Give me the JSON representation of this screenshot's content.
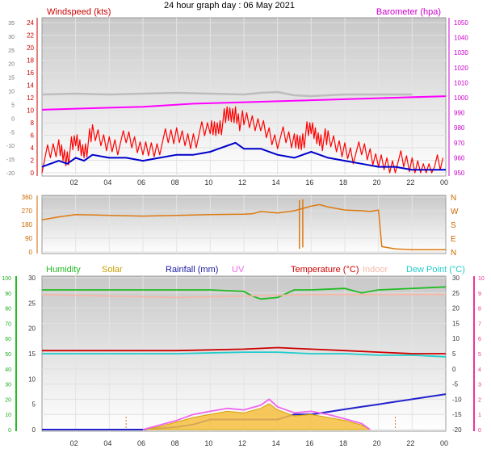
{
  "title": "24 hour graph day : 06 May 2021",
  "x_ticks": [
    "02",
    "04",
    "06",
    "08",
    "10",
    "12",
    "14",
    "16",
    "18",
    "20",
    "22",
    "00"
  ],
  "colors": {
    "windspeed": "#ff0000",
    "gust_avg": "#0000cc",
    "wind_bg": "#bdbdbd",
    "barometer": "#ff00ff",
    "direction": "#dd7a10",
    "humidity": "#22bb22",
    "solar": "#d4a400",
    "rainfall": "#2222cc",
    "uv": "#ee66ee",
    "temperature": "#cc0000",
    "indoor": "#f4b8a8",
    "dewpoint": "#22cccc",
    "left_axis_green": "#22bb22",
    "right_axis_pink": "#ee3399"
  },
  "chart_data": [
    {
      "type": "line",
      "id": "wind",
      "labels": {
        "left": "Windspeed (kts)",
        "right": "Barometer (hpa)"
      },
      "left_outer_ticks": [
        "35",
        "30",
        "25",
        "20",
        "15",
        "10",
        "5",
        "0",
        "-5",
        "-10",
        "-15",
        "-20"
      ],
      "left_inner_ticks": [
        "24",
        "22",
        "20",
        "18",
        "16",
        "14",
        "12",
        "10",
        "8",
        "6",
        "4",
        "2",
        "0"
      ],
      "right_ticks": [
        "1050",
        "1040",
        "1030",
        "1020",
        "1010",
        "1000",
        "990",
        "980",
        "970",
        "960",
        "950"
      ],
      "ylim_wind": [
        0,
        25
      ],
      "ylim_baro": [
        950,
        1050
      ],
      "series": [
        {
          "name": "Windspeed (kts)",
          "color": "#ff0000",
          "axis": "wind",
          "x": [
            0,
            1,
            1.5,
            2,
            2.5,
            3,
            4,
            5,
            6,
            7,
            8,
            9,
            10,
            10.5,
            11,
            11.5,
            12,
            13,
            14,
            15,
            15.5,
            16,
            16.5,
            17,
            18,
            19,
            20,
            21,
            22,
            23,
            24
          ],
          "y": [
            2,
            4,
            3,
            5,
            4,
            6,
            5,
            5,
            4,
            5,
            6,
            6,
            7,
            8,
            9,
            10,
            8,
            8,
            6,
            5,
            6,
            7,
            6,
            5,
            4,
            3,
            2,
            2,
            1,
            1,
            1
          ]
        },
        {
          "name": "Barometer (hpa)",
          "color": "#ff00ff",
          "axis": "baro",
          "x": [
            0,
            3,
            6,
            9,
            12,
            15,
            18,
            21,
            24
          ],
          "y": [
            992,
            993,
            994,
            996,
            997,
            998,
            999,
            1000,
            1001
          ]
        }
      ]
    },
    {
      "type": "line",
      "id": "direction",
      "left_ticks": [
        "360",
        "270",
        "180",
        "90",
        "0"
      ],
      "right_ticks": [
        "N",
        "W",
        "S",
        "E",
        "N"
      ],
      "ylim": [
        0,
        360
      ],
      "series": [
        {
          "name": "Wind direction",
          "color": "#dd7a10",
          "x": [
            0,
            1,
            2,
            4,
            6,
            8,
            10,
            12,
            12.5,
            13,
            14,
            15,
            16,
            16.5,
            17,
            18,
            19,
            19.5,
            20,
            20.2,
            21,
            22,
            23,
            24
          ],
          "y": [
            210,
            230,
            245,
            240,
            235,
            240,
            245,
            248,
            250,
            265,
            255,
            270,
            300,
            310,
            295,
            275,
            270,
            265,
            275,
            35,
            20,
            15,
            15,
            15
          ]
        }
      ]
    },
    {
      "type": "line",
      "id": "multi",
      "labels": [
        "Humidity",
        "Solar",
        "Rainfall (mm)",
        "UV",
        "Temperature (°C)",
        "Indoor",
        "Dew Point (°C)"
      ],
      "left_outer_ticks": [
        "100",
        "90",
        "80",
        "70",
        "60",
        "50",
        "40",
        "30",
        "20",
        "10",
        "0"
      ],
      "left_inner_ticks": [
        "30",
        "25",
        "20",
        "15",
        "10",
        "5",
        "0"
      ],
      "right_inner_ticks": [
        "30",
        "25",
        "20",
        "15",
        "10",
        "5",
        "0",
        "-5",
        "-10",
        "-15",
        "-20"
      ],
      "right_outer_ticks": [
        "10",
        "9",
        "8",
        "7",
        "6",
        "5",
        "4",
        "3",
        "2",
        "1",
        "0"
      ],
      "ylim_pct": [
        0,
        100
      ],
      "ylim_rain": [
        0,
        30
      ],
      "ylim_temp": [
        -20,
        30
      ],
      "series": [
        {
          "name": "Humidity",
          "color": "#22bb22",
          "axis": "pct",
          "x": [
            0,
            2,
            4,
            6,
            8,
            10,
            12,
            12.5,
            13,
            14,
            15,
            16,
            18,
            19,
            20,
            22,
            24
          ],
          "y": [
            92,
            92,
            92,
            92,
            92,
            92,
            91,
            88,
            86,
            87,
            92,
            92,
            93,
            90,
            92,
            93,
            94
          ]
        },
        {
          "name": "Indoor",
          "color": "#f4b8a8",
          "axis": "pct",
          "x": [
            0,
            4,
            8,
            12,
            16,
            20,
            24
          ],
          "y": [
            89,
            88,
            87,
            88,
            89,
            89,
            89
          ]
        },
        {
          "name": "Temperature (°C)",
          "color": "#cc0000",
          "axis": "temp",
          "x": [
            0,
            4,
            8,
            12,
            14,
            16,
            18,
            20,
            22,
            24
          ],
          "y": [
            6,
            6,
            6,
            6.5,
            7,
            6.5,
            6,
            5.5,
            5,
            5
          ]
        },
        {
          "name": "Dew Point (°C)",
          "color": "#22cccc",
          "axis": "temp",
          "x": [
            0,
            4,
            8,
            12,
            14,
            16,
            18,
            20,
            22,
            24
          ],
          "y": [
            5,
            5,
            5,
            5.5,
            5.5,
            5,
            5,
            4.5,
            4.5,
            4
          ]
        },
        {
          "name": "Rainfall (mm)",
          "color": "#2222cc",
          "axis": "rain",
          "x": [
            0,
            6,
            8,
            9,
            10,
            14,
            14.5,
            15,
            16,
            17,
            18,
            19,
            20,
            21,
            22,
            23,
            24
          ],
          "y": [
            0,
            0,
            0.5,
            1,
            2,
            2,
            2.5,
            3,
            3,
            3.5,
            4,
            4.5,
            5,
            5.5,
            6,
            6.5,
            7
          ]
        },
        {
          "name": "Solar",
          "color": "#d4a400",
          "axis": "pct",
          "area": true,
          "x": [
            6,
            7,
            8,
            9,
            10,
            11,
            12,
            13,
            13.5,
            14,
            15,
            16,
            17,
            18,
            19,
            19.5
          ],
          "y": [
            0,
            2,
            5,
            8,
            10,
            12,
            11,
            14,
            17,
            13,
            9,
            10,
            8,
            6,
            3,
            0
          ]
        },
        {
          "name": "UV",
          "color": "#ee66ee",
          "axis": "pct",
          "x": [
            6,
            7,
            8,
            9,
            10,
            11,
            12,
            13,
            13.5,
            14,
            15,
            16,
            17,
            18,
            19,
            19.5
          ],
          "y": [
            0,
            3,
            6,
            10,
            12,
            14,
            13,
            16,
            20,
            15,
            11,
            12,
            10,
            7,
            4,
            0
          ]
        }
      ]
    }
  ]
}
